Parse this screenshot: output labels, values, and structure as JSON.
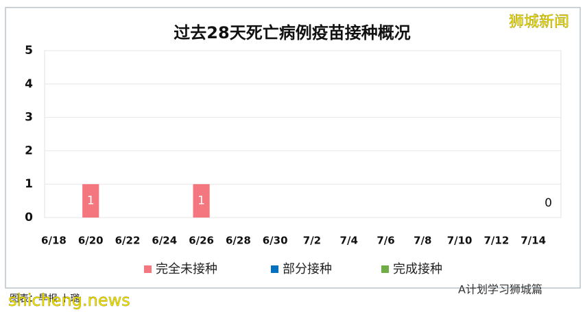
{
  "chart_data": {
    "type": "stacked-bar",
    "title": "过去28天死亡病例疫苗接种概况",
    "categories": [
      "6/18",
      null,
      "6/20",
      null,
      "6/22",
      null,
      "6/24",
      null,
      "6/26",
      null,
      "6/28",
      null,
      "6/30",
      null,
      "7/2",
      null,
      "7/4",
      null,
      "7/6",
      null,
      "7/8",
      null,
      "7/10",
      null,
      "7/12",
      null,
      "7/14",
      null
    ],
    "series": [
      {
        "name": "完全未接种",
        "color": "#f4777f",
        "values": [
          null,
          null,
          1,
          null,
          null,
          null,
          null,
          null,
          1,
          null,
          null,
          null,
          null,
          null,
          null,
          null,
          null,
          null,
          null,
          null,
          null,
          null,
          null,
          null,
          null,
          null,
          null,
          0
        ]
      },
      {
        "name": "部分接种",
        "color": "#0070c0",
        "values": [
          null,
          null,
          null,
          null,
          null,
          null,
          null,
          null,
          null,
          null,
          null,
          null,
          null,
          null,
          null,
          null,
          null,
          null,
          null,
          null,
          null,
          null,
          null,
          null,
          null,
          null,
          null,
          null
        ]
      },
      {
        "name": "完成接种",
        "color": "#70ad47",
        "values": [
          null,
          null,
          null,
          null,
          null,
          null,
          null,
          null,
          null,
          null,
          null,
          null,
          null,
          null,
          null,
          null,
          null,
          null,
          null,
          null,
          null,
          null,
          null,
          null,
          null,
          null,
          null,
          null
        ]
      }
    ],
    "ylim": [
      0,
      5
    ],
    "yticks": [
      0,
      1,
      2,
      3,
      4,
      5
    ],
    "grid": true,
    "legend": "bottom"
  },
  "source": "图表：早报·卜璐",
  "watermarks": [
    "狮城新闻",
    "shicheng.news",
    "A计划学习狮城篇"
  ]
}
